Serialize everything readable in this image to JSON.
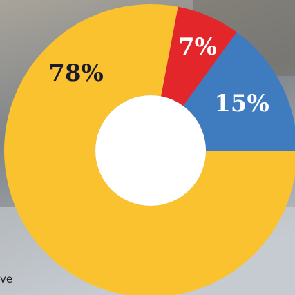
{
  "chart_data": {
    "type": "pie",
    "values": [
      15,
      7,
      78
    ],
    "value_labels": [
      "15%",
      "7%",
      "78%"
    ],
    "colors": [
      "#3f7bbf",
      "#e3262a",
      "#fbc22f"
    ],
    "label_colors": [
      "#ffffff",
      "#ffffff",
      "#1b1b2f"
    ],
    "donut": true,
    "annotation": "ve"
  }
}
